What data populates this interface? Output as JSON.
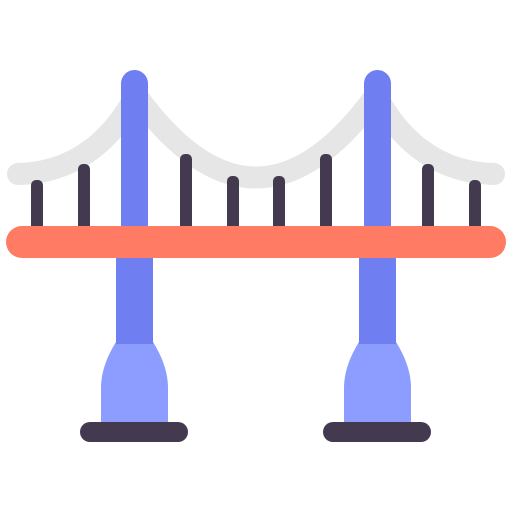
{
  "icon": {
    "name": "suspension-bridge-icon",
    "colors": {
      "background": "#ffffff",
      "cable": "#e6e6e6",
      "hanger": "#433a4f",
      "deck": "#ff7b63",
      "tower": "#6f7ff2",
      "pier": "#8c9dff",
      "base": "#433a4f"
    }
  }
}
